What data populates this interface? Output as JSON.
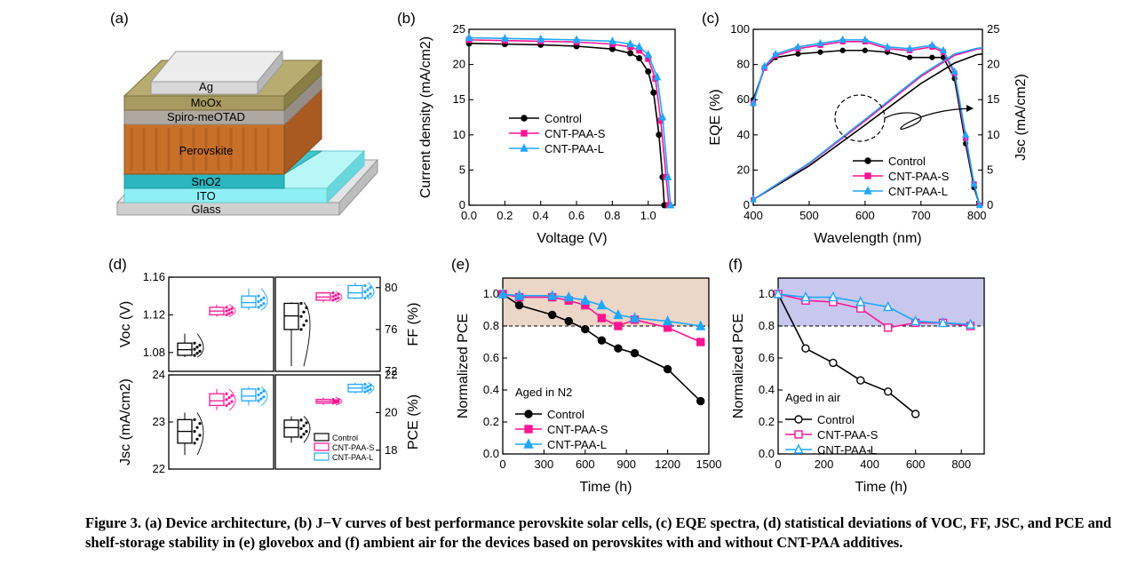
{
  "caption": "Figure 3. (a) Device architecture, (b) J−V curves of best performance perovskite solar cells, (c) EQE spectra, (d) statistical deviations of VOC, FF, JSC, and PCE and shelf-storage stability in (e) glovebox and (f) ambient air for the devices based on perovskites with and without CNT-PAA additives.",
  "colors": {
    "control": "#000000",
    "cnt_paa_s": "#ff1493",
    "cnt_paa_l": "#1ea7ff",
    "panel_e_bg": "#ecd6c8",
    "panel_f_bg": "#c8c8ee",
    "perovskite": "#c8702a",
    "sno2": "#2bb6c0",
    "ito": "#8ef0f5",
    "ag": "#d8d8d8",
    "moox": "#a89a60",
    "spiro": "#b0a8a0",
    "glass": "#d0d0d0"
  },
  "panel_a": {
    "label": "(a)",
    "layers": [
      "Ag",
      "MoOx",
      "Spiro-meOTAD",
      "Perovskite",
      "SnO2",
      "ITO",
      "Glass"
    ]
  },
  "panel_labels": {
    "b": "(b)",
    "c": "(c)",
    "d": "(d)",
    "e": "(e)",
    "f": "(f)"
  },
  "legend": [
    "Control",
    "CNT-PAA-S",
    "CNT-PAA-L"
  ],
  "legend_e_title": "Aged in N2",
  "legend_f_title": "Aged in air",
  "chart_data": [
    {
      "panel": "b",
      "type": "line",
      "xlabel": "Voltage (V)",
      "ylabel": "Current density (mA/cm2)",
      "xlim": [
        0,
        1.15
      ],
      "ylim": [
        0,
        25
      ],
      "xticks": [
        "0.0",
        "0.2",
        "0.4",
        "0.6",
        "0.8",
        "1.0"
      ],
      "yticks": [
        "0",
        "5",
        "10",
        "15",
        "20",
        "25"
      ],
      "legend_position": "center-right",
      "series": [
        {
          "name": "Control",
          "x": [
            0,
            0.2,
            0.4,
            0.6,
            0.8,
            0.9,
            0.95,
            1.0,
            1.03,
            1.06,
            1.08,
            1.09
          ],
          "y": [
            23.0,
            22.9,
            22.8,
            22.6,
            22.2,
            21.6,
            20.9,
            19.0,
            16.0,
            10.0,
            4.0,
            0
          ]
        },
        {
          "name": "CNT-PAA-S",
          "x": [
            0,
            0.2,
            0.4,
            0.6,
            0.8,
            0.9,
            0.95,
            1.0,
            1.04,
            1.07,
            1.1,
            1.115
          ],
          "y": [
            23.5,
            23.4,
            23.3,
            23.2,
            22.9,
            22.5,
            22.0,
            20.8,
            18.0,
            12.0,
            4.0,
            0
          ]
        },
        {
          "name": "CNT-PAA-L",
          "x": [
            0,
            0.2,
            0.4,
            0.6,
            0.8,
            0.9,
            0.95,
            1.0,
            1.05,
            1.08,
            1.11,
            1.125
          ],
          "y": [
            23.8,
            23.7,
            23.6,
            23.5,
            23.3,
            22.9,
            22.5,
            21.4,
            18.2,
            12.5,
            4.0,
            0
          ]
        }
      ]
    },
    {
      "panel": "c",
      "type": "line",
      "xlabel": "Wavelength (nm)",
      "ylabel": "EQE (%)",
      "y2label": "Jsc (mA/cm2)",
      "xlim": [
        400,
        810
      ],
      "ylim": [
        0,
        100
      ],
      "y2lim": [
        0,
        25
      ],
      "xticks": [
        "400",
        "500",
        "600",
        "700",
        "800"
      ],
      "yticks": [
        "0",
        "20",
        "40",
        "60",
        "80",
        "100"
      ],
      "y2ticks": [
        "0",
        "5",
        "10",
        "15",
        "20",
        "25"
      ],
      "series": [
        {
          "name": "Control",
          "x": [
            400,
            420,
            440,
            480,
            520,
            560,
            600,
            640,
            680,
            720,
            740,
            760,
            780,
            795,
            805
          ],
          "y": [
            60,
            78,
            84,
            86,
            87,
            88,
            88,
            87,
            84,
            84,
            84,
            72,
            35,
            10,
            0
          ]
        },
        {
          "name": "CNT-PAA-S",
          "x": [
            400,
            420,
            440,
            480,
            520,
            560,
            600,
            640,
            680,
            720,
            740,
            760,
            780,
            795,
            805
          ],
          "y": [
            58,
            78,
            85,
            89,
            91,
            93,
            93,
            89,
            88,
            90,
            87,
            75,
            38,
            12,
            0
          ]
        },
        {
          "name": "CNT-PAA-L",
          "x": [
            400,
            420,
            440,
            480,
            520,
            560,
            600,
            640,
            680,
            720,
            740,
            760,
            780,
            795,
            805
          ],
          "y": [
            58,
            79,
            86,
            90,
            92,
            94,
            94,
            90,
            89,
            91,
            88,
            76,
            40,
            12,
            0
          ]
        },
        {
          "name": "Control",
          "axis": "y2",
          "x": [
            400,
            500,
            600,
            700,
            760,
            800,
            810
          ],
          "y": [
            0.8,
            5.6,
            11.4,
            17.3,
            20.2,
            21.4,
            21.5
          ]
        },
        {
          "name": "CNT-PAA-S",
          "axis": "y2",
          "x": [
            400,
            500,
            600,
            700,
            760,
            800,
            810
          ],
          "y": [
            0.8,
            5.9,
            12.0,
            18.3,
            21.3,
            22.2,
            22.3
          ]
        },
        {
          "name": "CNT-PAA-L",
          "axis": "y2",
          "x": [
            400,
            500,
            600,
            700,
            760,
            800,
            810
          ],
          "y": [
            0.8,
            6.0,
            12.2,
            18.5,
            21.5,
            22.3,
            22.4
          ]
        }
      ]
    },
    {
      "panel": "d",
      "type": "box",
      "subplots": [
        {
          "label": "Voc (V)",
          "side": "left",
          "ylim": [
            1.06,
            1.16
          ],
          "yticks": [
            "1.08",
            "1.12",
            "1.16"
          ],
          "boxes": [
            {
              "name": "Control",
              "q1": 1.077,
              "median": 1.083,
              "q3": 1.09,
              "min": 1.075,
              "max": 1.1
            },
            {
              "name": "CNT-PAA-S",
              "q1": 1.12,
              "median": 1.124,
              "q3": 1.128,
              "min": 1.118,
              "max": 1.131
            },
            {
              "name": "CNT-PAA-L",
              "q1": 1.128,
              "median": 1.133,
              "q3": 1.14,
              "min": 1.125,
              "max": 1.148
            }
          ]
        },
        {
          "label": "FF (%)",
          "side": "right",
          "ylim": [
            72,
            81
          ],
          "yticks": [
            "72",
            "76",
            "80"
          ],
          "boxes": [
            {
              "name": "Control",
              "q1": 76.0,
              "median": 77.3,
              "q3": 78.5,
              "min": 72.5,
              "max": 78.6
            },
            {
              "name": "CNT-PAA-S",
              "q1": 78.8,
              "median": 79.1,
              "q3": 79.5,
              "min": 78.6,
              "max": 79.6
            },
            {
              "name": "CNT-PAA-L",
              "q1": 79.0,
              "median": 79.5,
              "q3": 80.2,
              "min": 78.9,
              "max": 80.5
            }
          ]
        },
        {
          "label": "Jsc (mA/cm2)",
          "side": "left",
          "ylim": [
            22,
            24
          ],
          "yticks": [
            "22",
            "23",
            "24"
          ],
          "boxes": [
            {
              "name": "Control",
              "q1": 22.55,
              "median": 22.8,
              "q3": 23.05,
              "min": 22.3,
              "max": 23.2
            },
            {
              "name": "CNT-PAA-S",
              "q1": 23.35,
              "median": 23.45,
              "q3": 23.6,
              "min": 23.25,
              "max": 23.7
            },
            {
              "name": "CNT-PAA-L",
              "q1": 23.45,
              "median": 23.55,
              "q3": 23.7,
              "min": 23.35,
              "max": 23.75
            }
          ]
        },
        {
          "label": "PCE (%)",
          "side": "right",
          "ylim": [
            17,
            22
          ],
          "yticks": [
            "18",
            "20",
            "22"
          ],
          "boxes": [
            {
              "name": "Control",
              "q1": 18.7,
              "median": 19.2,
              "q3": 19.6,
              "min": 18.4,
              "max": 19.8
            },
            {
              "name": "CNT-PAA-S",
              "q1": 20.5,
              "median": 20.6,
              "q3": 20.7,
              "min": 20.4,
              "max": 20.8
            },
            {
              "name": "CNT-PAA-L",
              "q1": 21.1,
              "median": 21.3,
              "q3": 21.5,
              "min": 21.0,
              "max": 21.6
            }
          ]
        }
      ]
    },
    {
      "panel": "e",
      "type": "line",
      "xlabel": "Time (h)",
      "ylabel": "Normalized PCE",
      "xlim": [
        0,
        1500
      ],
      "ylim": [
        0,
        1.1
      ],
      "xticks": [
        "0",
        "300",
        "600",
        "900",
        "1200",
        "1500"
      ],
      "yticks": [
        "0.0",
        "0.2",
        "0.4",
        "0.6",
        "0.8",
        "1.0"
      ],
      "reference_line": 0.8,
      "series": [
        {
          "name": "Control",
          "x": [
            0,
            120,
            360,
            480,
            600,
            720,
            840,
            960,
            1200,
            1440
          ],
          "y": [
            1.0,
            0.93,
            0.87,
            0.83,
            0.78,
            0.71,
            0.66,
            0.63,
            0.53,
            0.33
          ]
        },
        {
          "name": "CNT-PAA-S",
          "x": [
            0,
            120,
            360,
            480,
            600,
            720,
            840,
            960,
            1200,
            1440
          ],
          "y": [
            1.0,
            0.98,
            0.98,
            0.96,
            0.93,
            0.85,
            0.8,
            0.84,
            0.79,
            0.7
          ]
        },
        {
          "name": "CNT-PAA-L",
          "x": [
            0,
            120,
            360,
            480,
            600,
            720,
            840,
            960,
            1200,
            1440
          ],
          "y": [
            1.0,
            0.99,
            0.99,
            0.98,
            0.96,
            0.93,
            0.87,
            0.85,
            0.83,
            0.8
          ]
        }
      ]
    },
    {
      "panel": "f",
      "type": "line",
      "xlabel": "Time (h)",
      "ylabel": "Normalized PCE",
      "xlim": [
        0,
        900
      ],
      "ylim": [
        0,
        1.1
      ],
      "xticks": [
        "0",
        "200",
        "400",
        "600",
        "800"
      ],
      "yticks": [
        "0.0",
        "0.2",
        "0.4",
        "0.6",
        "0.8",
        "1.0"
      ],
      "reference_line": 0.8,
      "series": [
        {
          "name": "Control",
          "x": [
            0,
            120,
            240,
            360,
            480,
            600
          ],
          "y": [
            1.0,
            0.66,
            0.57,
            0.46,
            0.39,
            0.25
          ]
        },
        {
          "name": "CNT-PAA-S",
          "x": [
            0,
            120,
            240,
            360,
            480,
            600,
            720,
            840
          ],
          "y": [
            1.0,
            0.96,
            0.95,
            0.91,
            0.79,
            0.82,
            0.82,
            0.8
          ]
        },
        {
          "name": "CNT-PAA-L",
          "x": [
            0,
            120,
            240,
            360,
            480,
            600,
            720,
            840
          ],
          "y": [
            1.0,
            0.98,
            0.98,
            0.95,
            0.92,
            0.83,
            0.82,
            0.81
          ]
        }
      ]
    }
  ]
}
